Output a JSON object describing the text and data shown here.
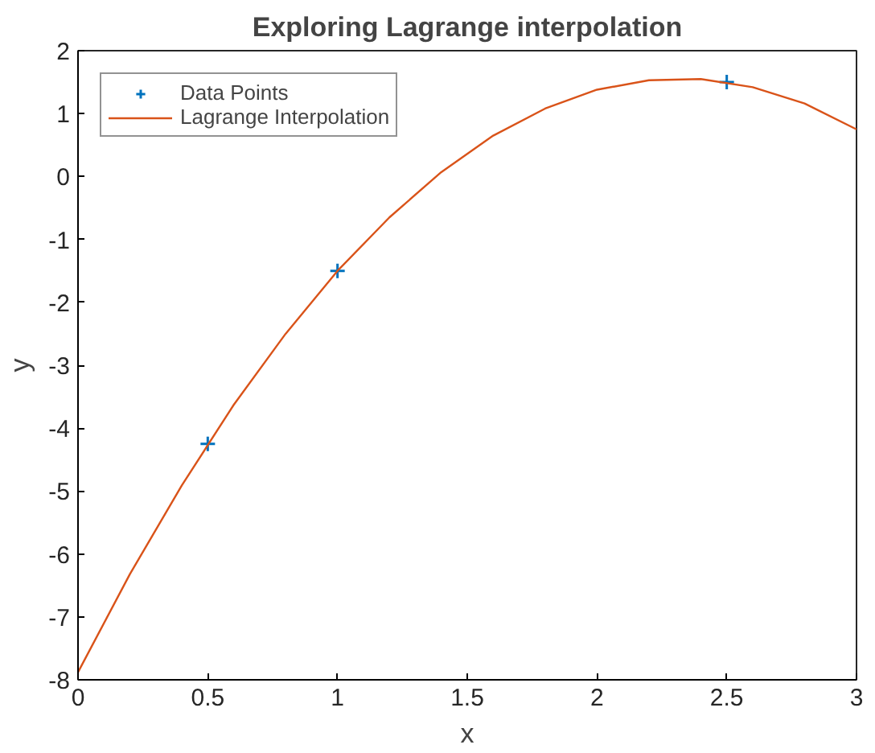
{
  "chart_data": {
    "type": "scatter",
    "title": "Exploring Lagrange interpolation",
    "xlabel": "x",
    "ylabel": "y",
    "xlim": [
      0,
      3
    ],
    "ylim": [
      -8,
      2
    ],
    "xticks": [
      0,
      0.5,
      1,
      1.5,
      2,
      2.5,
      3
    ],
    "yticks": [
      -8,
      -7,
      -6,
      -5,
      -4,
      -3,
      -2,
      -1,
      0,
      1,
      2
    ],
    "grid": false,
    "legend": "top left",
    "series": [
      {
        "name": "Data Points",
        "marker": "cross",
        "color": "#0072bd",
        "x": [
          0.5,
          1,
          2.5
        ],
        "values": [
          -4.25,
          -1.5,
          1.5
        ]
      },
      {
        "name": "Lagrange Interpolation",
        "type": "line",
        "marker": "none",
        "line_style": "solid",
        "color": "#d95319",
        "x": [
          0,
          0.2,
          0.4,
          0.6,
          0.8,
          1.0,
          1.2,
          1.4,
          1.6,
          1.8,
          2.0,
          2.2,
          2.4,
          2.6,
          2.8,
          3.0
        ],
        "values": [
          -7.88,
          -6.32,
          -4.91,
          -3.63,
          -2.5,
          -1.5,
          -0.65,
          0.07,
          0.65,
          1.08,
          1.38,
          1.53,
          1.55,
          1.42,
          1.16,
          0.75
        ]
      }
    ]
  }
}
